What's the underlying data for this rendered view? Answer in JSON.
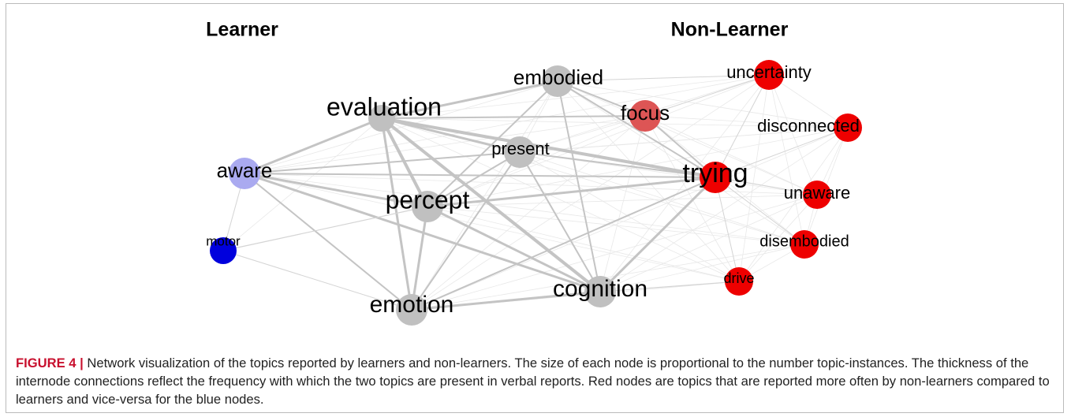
{
  "panels": {
    "left": "Learner",
    "right": "Non-Learner"
  },
  "nodes": [
    {
      "label": "evaluation"
    },
    {
      "label": "embodied"
    },
    {
      "label": "present"
    },
    {
      "label": "aware"
    },
    {
      "label": "percept"
    },
    {
      "label": "motor"
    },
    {
      "label": "emotion"
    },
    {
      "label": "cognition"
    },
    {
      "label": "focus"
    },
    {
      "label": "trying"
    },
    {
      "label": "uncertainty"
    },
    {
      "label": "disconnected"
    },
    {
      "label": "unaware"
    },
    {
      "label": "disembodied"
    },
    {
      "label": "drive"
    }
  ],
  "caption": {
    "label": "FIGURE 4 |",
    "text": "Network visualization of the topics reported by learners and non-learners. The size of each node is proportional to the number topic-instances. The thickness of the internode connections reflect the frequency with which the two topics are present in verbal reports. Red nodes are topics that are reported more often by non-learners compared to learners and vice-versa for the blue nodes."
  }
}
